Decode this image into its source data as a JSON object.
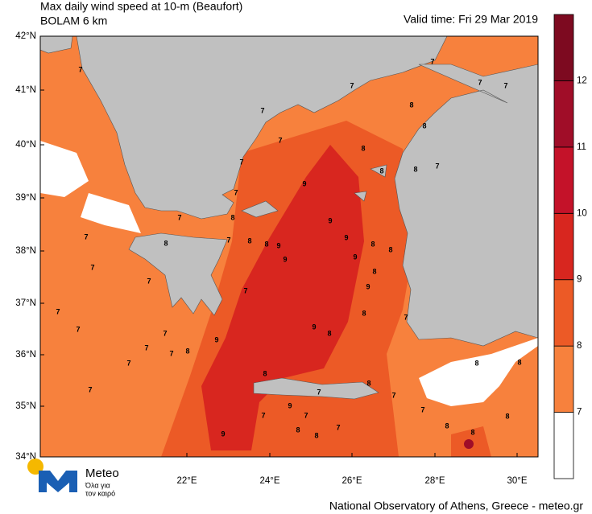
{
  "header": {
    "title": "Max daily wind speed at 10-m (Beaufort)",
    "model": "BOLAM 6 km",
    "valid_time": "Valid time: Fri 29 Mar 2019"
  },
  "map": {
    "lat_labels": [
      "42°N",
      "41°N",
      "40°N",
      "39°N",
      "38°N",
      "37°N",
      "36°N",
      "35°N",
      "34°N"
    ],
    "lon_labels": [
      "22°E",
      "24°E",
      "26°E",
      "28°E",
      "30°E"
    ],
    "contour_labels": [
      7,
      7,
      7,
      7,
      7,
      7,
      8,
      8,
      7,
      8,
      8,
      8,
      7,
      7,
      9,
      7,
      8,
      7,
      8,
      7,
      8,
      8,
      9,
      9,
      9,
      9,
      9,
      8,
      8,
      8,
      9,
      7,
      7,
      7,
      7,
      7,
      7,
      7,
      8,
      7,
      9,
      7,
      9,
      8,
      8,
      7,
      8,
      8,
      7,
      7,
      9,
      7,
      7,
      8,
      8,
      7,
      9,
      7,
      7,
      7,
      8,
      8,
      8,
      8,
      8
    ]
  },
  "colorbar": {
    "levels": [
      7,
      8,
      9,
      10,
      11,
      12
    ],
    "colors": [
      "#ffffff",
      "#f7813d",
      "#ec5a26",
      "#d8261f",
      "#c41229",
      "#a00d28",
      "#7d0a20"
    ]
  },
  "logo": {
    "name": "Meteo",
    "tagline_1": "Όλα για",
    "tagline_2": "τον καιρό"
  },
  "footer": "National Observatory of Athens, Greece - meteo.gr"
}
